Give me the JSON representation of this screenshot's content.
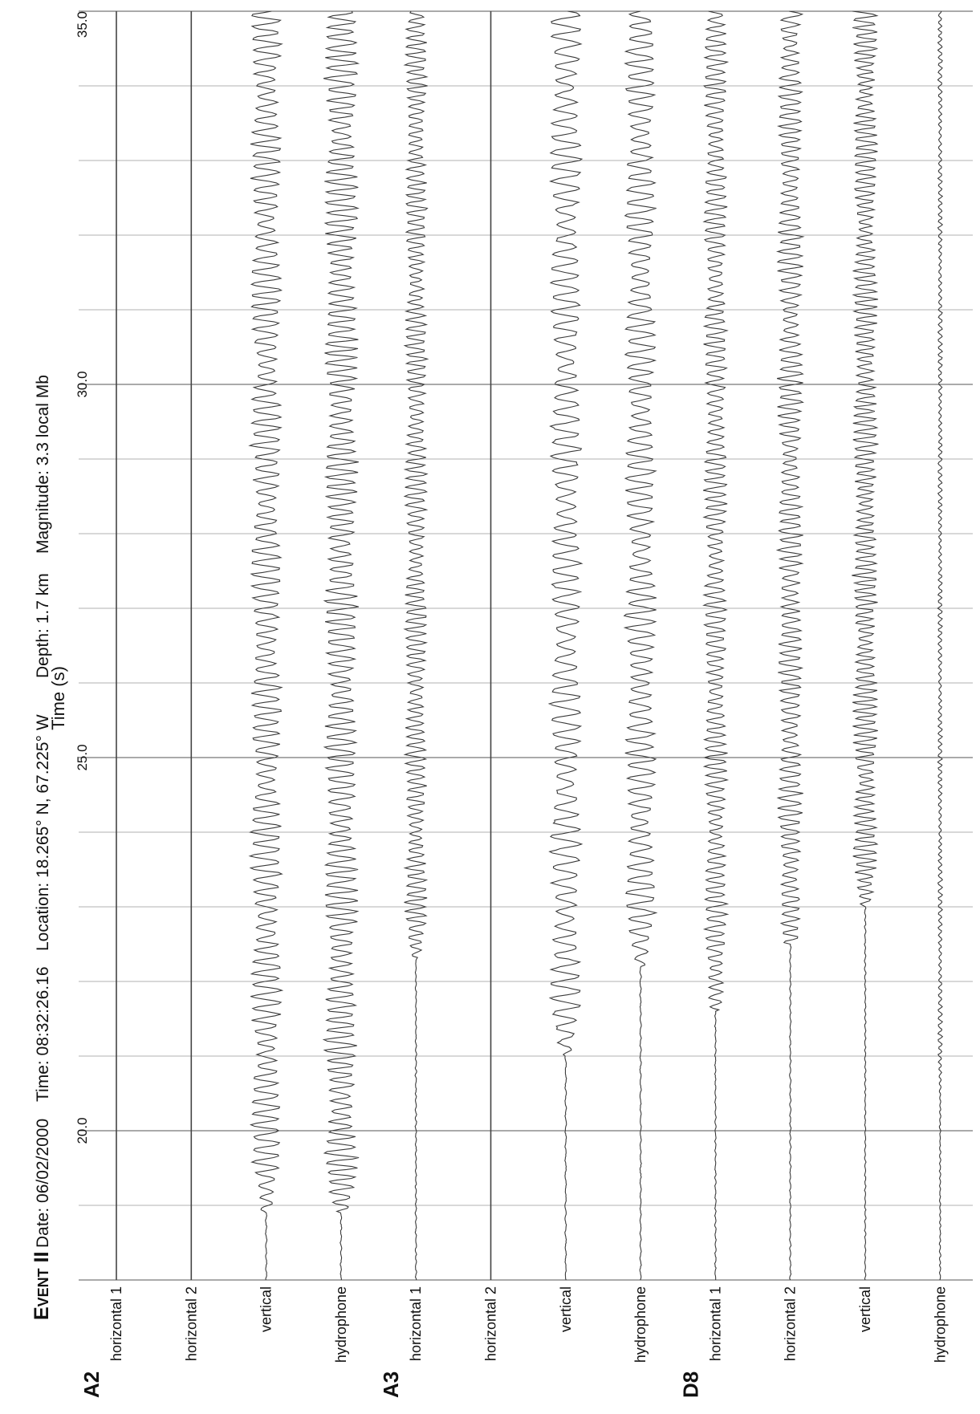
{
  "header": {
    "event_label": "Event II",
    "date": "Date: 06/02/2000",
    "time": "Time: 08:32:26.16",
    "location": "Location: 18.265° N, 67.225° W",
    "depth": "Depth: 1.7 km",
    "magnitude": "Magnitude:  3.3 local Mb"
  },
  "chart_data": {
    "type": "line",
    "title": "",
    "xlabel": "Time (s)",
    "ylabel": "",
    "xlim": [
      18.0,
      35.0
    ],
    "xticks": [
      20.0,
      25.0,
      30.0,
      35.0
    ],
    "xtick_labels": [
      "20.0",
      "25.0",
      "30.0",
      "35.0"
    ],
    "minor_gridlines_every": 1.0,
    "grid": true,
    "orientation": "rotated 90° counter-clockwise",
    "stations": [
      {
        "name": "A2",
        "channels": [
          {
            "label": "horizontal 1",
            "onset": null,
            "amplitude": 0,
            "dominant_period": 0.18
          },
          {
            "label": "horizontal 2",
            "onset": null,
            "amplitude": 0,
            "dominant_period": 0.18
          },
          {
            "label": "vertical",
            "onset": 18.9,
            "amplitude": 0.55,
            "dominant_period": 0.16
          },
          {
            "label": "hydrophone",
            "onset": 18.9,
            "amplitude": 0.6,
            "dominant_period": 0.14
          }
        ]
      },
      {
        "name": "A3",
        "channels": [
          {
            "label": "horizontal 1",
            "onset": 22.3,
            "amplitude": 0.4,
            "dominant_period": 0.12
          },
          {
            "label": "horizontal 2",
            "onset": null,
            "amplitude": 0,
            "dominant_period": 0.18
          },
          {
            "label": "vertical",
            "onset": 21.0,
            "amplitude": 0.55,
            "dominant_period": 0.2
          },
          {
            "label": "hydrophone",
            "onset": 22.2,
            "amplitude": 0.55,
            "dominant_period": 0.17
          }
        ]
      },
      {
        "name": "D8",
        "channels": [
          {
            "label": "horizontal 1",
            "onset": 21.6,
            "amplitude": 0.42,
            "dominant_period": 0.13
          },
          {
            "label": "horizontal 2",
            "onset": 22.5,
            "amplitude": 0.45,
            "dominant_period": 0.13
          },
          {
            "label": "vertical",
            "onset": 23.0,
            "amplitude": 0.45,
            "dominant_period": 0.11
          },
          {
            "label": "hydrophone",
            "onset": 20.5,
            "amplitude": 0.08,
            "dominant_period": 0.1
          }
        ]
      }
    ]
  }
}
